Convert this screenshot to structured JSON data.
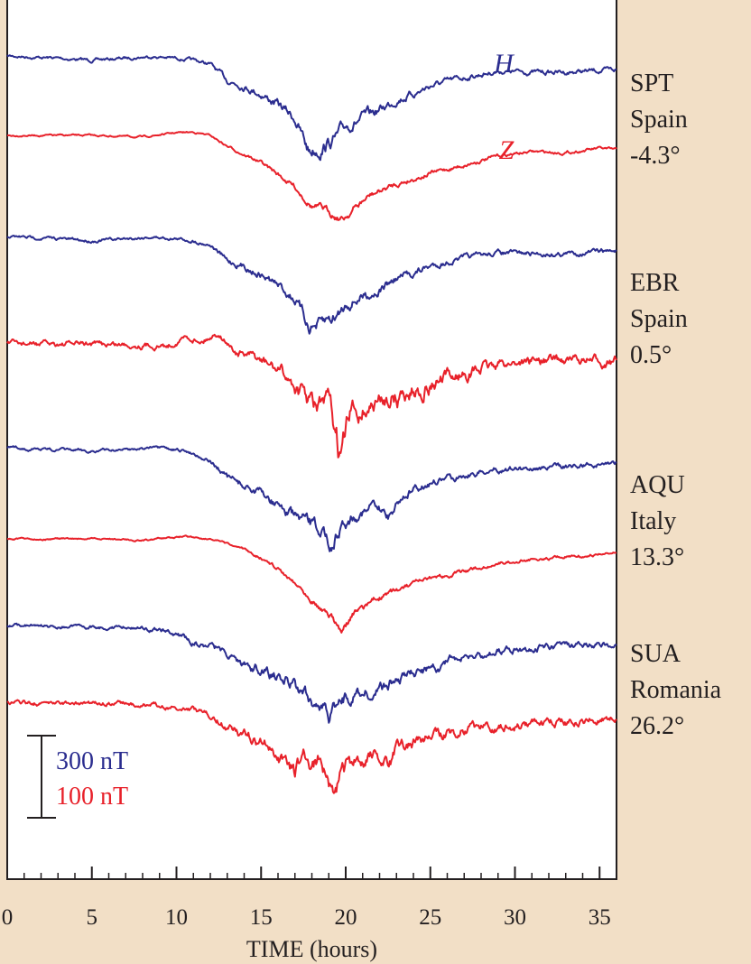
{
  "chart_data": {
    "type": "line",
    "xlabel": "TIME (hours)",
    "xlim": [
      0,
      36
    ],
    "x_ticks": [
      "0",
      "5",
      "10",
      "15",
      "20",
      "25",
      "30",
      "35"
    ],
    "series_letters": {
      "H": "H",
      "Z": "Z"
    },
    "colors": {
      "H": "#2b2d8f",
      "Z": "#e8212a"
    },
    "scale_bar": {
      "h_label": "300 nT",
      "z_label": "100 nT"
    },
    "stations": [
      {
        "code": "SPT",
        "country": "Spain",
        "latitude": "-4.3°"
      },
      {
        "code": "EBR",
        "country": "Spain",
        "latitude": "0.5°"
      },
      {
        "code": "AQU",
        "country": "Italy",
        "latitude": "13.3°"
      },
      {
        "code": "SUA",
        "country": "Romania",
        "latitude": "26.2°"
      }
    ],
    "series": [
      {
        "station": "SPT",
        "component": "H",
        "noise": 0.5,
        "x": [
          0,
          3,
          5,
          7,
          8.5,
          10,
          11,
          12,
          13,
          14,
          15,
          16,
          17,
          17.8,
          18.5,
          19,
          19.5,
          20,
          21,
          22,
          23,
          24,
          25,
          27,
          29,
          31,
          33,
          36
        ],
        "y": [
          0,
          -4,
          -8,
          -4,
          -1,
          -4,
          -8,
          -15,
          -45,
          -55,
          -70,
          -90,
          -115,
          -175,
          -170,
          -160,
          -150,
          -130,
          -115,
          -100,
          -80,
          -70,
          -55,
          -40,
          -28,
          -30,
          -30,
          -26
        ]
      },
      {
        "station": "SPT",
        "component": "Z",
        "noise": 0.3,
        "x": [
          0,
          5,
          8,
          10,
          11,
          12,
          13,
          14,
          15,
          16,
          17,
          18,
          19,
          19.8,
          20.5,
          21.5,
          23,
          25,
          27,
          29,
          31,
          33,
          35,
          36
        ],
        "y": [
          0,
          0,
          -3,
          5,
          6,
          0,
          -20,
          -35,
          -50,
          -72,
          -95,
          -130,
          -140,
          -155,
          -135,
          -110,
          -90,
          -70,
          -55,
          -38,
          -30,
          -32,
          -24,
          -27
        ]
      },
      {
        "station": "EBR",
        "component": "H",
        "noise": 0.5,
        "x": [
          0,
          3,
          5,
          7,
          8.5,
          10,
          11,
          12,
          13,
          14,
          15,
          16,
          17,
          17.8,
          18.5,
          19,
          19.5,
          20,
          21,
          22,
          23,
          24,
          25,
          27,
          29,
          31,
          33,
          36
        ],
        "y": [
          0,
          -4,
          -8,
          -4,
          -1,
          -4,
          -8,
          -15,
          -45,
          -55,
          -70,
          -90,
          -115,
          -165,
          -165,
          -155,
          -145,
          -125,
          -110,
          -98,
          -78,
          -68,
          -55,
          -40,
          -30,
          -32,
          -32,
          -26
        ]
      },
      {
        "station": "EBR",
        "component": "Z",
        "noise": 1.0,
        "x": [
          0,
          5,
          8,
          9.5,
          10.5,
          11.5,
          12.5,
          13.5,
          14.5,
          15.5,
          16.5,
          17.5,
          18.2,
          19,
          19.7,
          20.3,
          21,
          22,
          22.5,
          23,
          25,
          27,
          29,
          31,
          33,
          36
        ],
        "y": [
          0,
          0,
          -2,
          -4,
          12,
          6,
          20,
          -15,
          -25,
          -40,
          -60,
          -95,
          -120,
          -110,
          -215,
          -130,
          -120,
          -110,
          -95,
          -100,
          -75,
          -55,
          -38,
          -30,
          -30,
          -33
        ]
      },
      {
        "station": "AQU",
        "component": "H",
        "noise": 0.5,
        "x": [
          0,
          3,
          5,
          7,
          8.5,
          10,
          11,
          12,
          13,
          14,
          15,
          16,
          17,
          18,
          18.5,
          19.2,
          19.8,
          20.5,
          21.5,
          22.5,
          23.5,
          25,
          27,
          29,
          31,
          33,
          36
        ],
        "y": [
          0,
          -4,
          -6,
          -3,
          0,
          -5,
          -10,
          -25,
          -55,
          -70,
          -85,
          -105,
          -130,
          -145,
          -150,
          -178,
          -140,
          -125,
          -110,
          -125,
          -85,
          -65,
          -50,
          -40,
          -38,
          -35,
          -28
        ]
      },
      {
        "station": "AQU",
        "component": "Z",
        "noise": 0.3,
        "x": [
          0,
          6,
          8,
          10.5,
          12,
          13,
          14,
          15,
          16,
          17,
          18,
          19,
          19.8,
          20.5,
          21.5,
          23,
          25,
          27,
          29,
          31,
          33,
          36
        ],
        "y": [
          0,
          0,
          -3,
          5,
          0,
          -10,
          -20,
          -35,
          -55,
          -80,
          -110,
          -140,
          -170,
          -140,
          -115,
          -95,
          -75,
          -60,
          -45,
          -38,
          -33,
          -27
        ]
      },
      {
        "station": "SUA",
        "component": "H",
        "noise": 0.6,
        "x": [
          0,
          3,
          5,
          7,
          8.5,
          10,
          11,
          12,
          13,
          14,
          15,
          16,
          17,
          18,
          19,
          19.5,
          20.5,
          21.5,
          22.5,
          24,
          26,
          28,
          30,
          32,
          34,
          36
        ],
        "y": [
          0,
          -4,
          -4,
          -5,
          -8,
          -18,
          -32,
          -38,
          -55,
          -72,
          -85,
          -98,
          -115,
          -140,
          -175,
          -140,
          -130,
          -125,
          -110,
          -95,
          -70,
          -55,
          -45,
          -42,
          -38,
          -36
        ]
      },
      {
        "station": "SUA",
        "component": "Z",
        "noise": 0.8,
        "x": [
          0,
          7,
          8,
          10,
          11,
          12,
          13,
          14,
          15,
          16,
          17,
          17.5,
          18,
          18.5,
          19,
          19.3,
          20,
          21,
          22,
          22.5,
          23,
          25,
          27,
          29,
          31,
          33,
          36
        ],
        "y": [
          0,
          0,
          -3,
          -6,
          -10,
          -20,
          -45,
          -55,
          -70,
          -90,
          -130,
          -85,
          -120,
          -95,
          -140,
          -150,
          -120,
          -110,
          -95,
          -120,
          -80,
          -65,
          -50,
          -45,
          -40,
          -35,
          -28
        ]
      }
    ]
  }
}
